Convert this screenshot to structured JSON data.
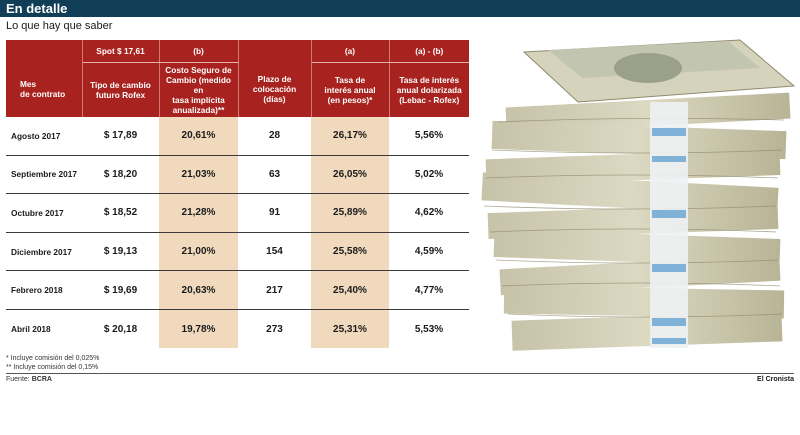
{
  "header": {
    "title": "En detalle",
    "subtitle": "Lo que hay que saber"
  },
  "table": {
    "top_labels": [
      "",
      "Spot $ 17,61",
      "(b)",
      "",
      "(a)",
      "(a) - (b)"
    ],
    "headers": [
      [
        "Mes",
        "de contrato"
      ],
      [
        "Tipo de cambio",
        "futuro Rofex"
      ],
      [
        "Costo Seguro de",
        "Cambio (medido en",
        "tasa implícita",
        "anualizada)**"
      ],
      [
        "Plazo de",
        "colocación",
        "(días)"
      ],
      [
        "Tasa de",
        "interés anual",
        "(en pesos)*"
      ],
      [
        "Tasa de interés",
        "anual dolarizada",
        "(Lebac - Rofex)"
      ]
    ],
    "rows": [
      {
        "month": "Agosto 2017",
        "rofex": "$ 17,89",
        "cost": "20,61%",
        "days": "28",
        "rate": "26,17%",
        "usd_rate": "5,56%"
      },
      {
        "month": "Septiembre 2017",
        "rofex": "$ 18,20",
        "cost": "21,03%",
        "days": "63",
        "rate": "26,05%",
        "usd_rate": "5,02%"
      },
      {
        "month": "Octubre 2017",
        "rofex": "$ 18,52",
        "cost": "21,28%",
        "days": "91",
        "rate": "25,89%",
        "usd_rate": "4,62%"
      },
      {
        "month": "Diciembre 2017",
        "rofex": "$ 19,13",
        "cost": "21,00%",
        "days": "154",
        "rate": "25,58%",
        "usd_rate": "4,59%"
      },
      {
        "month": "Febrero 2018",
        "rofex": "$ 19,69",
        "cost": "20,63%",
        "days": "217",
        "rate": "25,40%",
        "usd_rate": "4,77%"
      },
      {
        "month": "Abril 2018",
        "rofex": "$ 20,18",
        "cost": "19,78%",
        "days": "273",
        "rate": "25,31%",
        "usd_rate": "5,53%"
      }
    ]
  },
  "footnotes": [
    "* Incluye comisión del 0,025%",
    "** Incluye comisión del 0,15%"
  ],
  "source": {
    "label": "Fuente:",
    "name": "BCRA"
  },
  "credit": "El Cronista",
  "photo": {
    "subject": "stack-of-dollar-bills"
  },
  "colors": {
    "header_bar": "#0f3e56",
    "table_header": "#a8231f",
    "shaded_column": "#f0d9bd"
  }
}
